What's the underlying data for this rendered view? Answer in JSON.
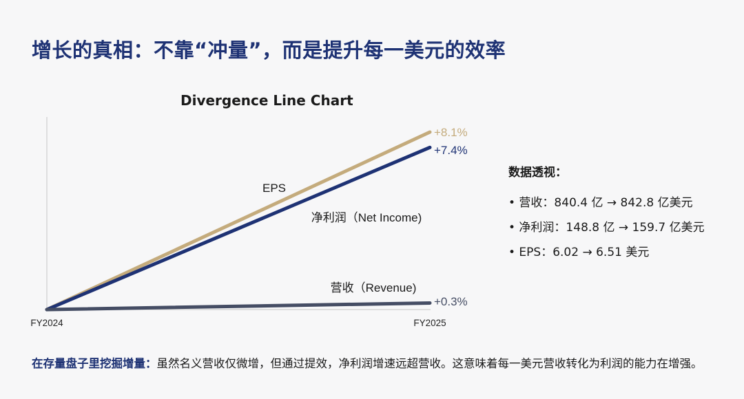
{
  "title": "增长的真相：不靠“冲量”，而是提升每一美元的效率",
  "colors": {
    "eps": "#c4ab7c",
    "net_income": "#1e3274",
    "revenue": "#454d64",
    "title": "#1e3274"
  },
  "chart_data": {
    "type": "line",
    "title": "Divergence Line Chart",
    "x": [
      "FY2024",
      "FY2025"
    ],
    "unit": "percent growth from FY2024",
    "ylim": [
      0,
      8.1
    ],
    "grid": false,
    "series": [
      {
        "key": "eps",
        "name": "EPS",
        "values": [
          0,
          8.1
        ],
        "end_label": "+8.1%"
      },
      {
        "key": "net_income",
        "name": "净利润（Net Income)",
        "values": [
          0,
          7.4
        ],
        "end_label": "+7.4%"
      },
      {
        "key": "revenue",
        "name": "营收（Revenue)",
        "values": [
          0,
          0.3
        ],
        "end_label": "+0.3%"
      }
    ]
  },
  "insights": {
    "heading": "数据透视：",
    "items": [
      "• 营收：840.4 亿 → 842.8 亿美元",
      "• 净利润：148.8 亿 → 159.7 亿美元",
      "• EPS：6.02 → 6.51 美元"
    ]
  },
  "footer": {
    "lead": "在存量盘子里挖掘增量：",
    "text": "虽然名义营收仅微增，但通过提效，净利润增速远超营收。这意味着每一美元营收转化为利润的能力在增强。"
  }
}
